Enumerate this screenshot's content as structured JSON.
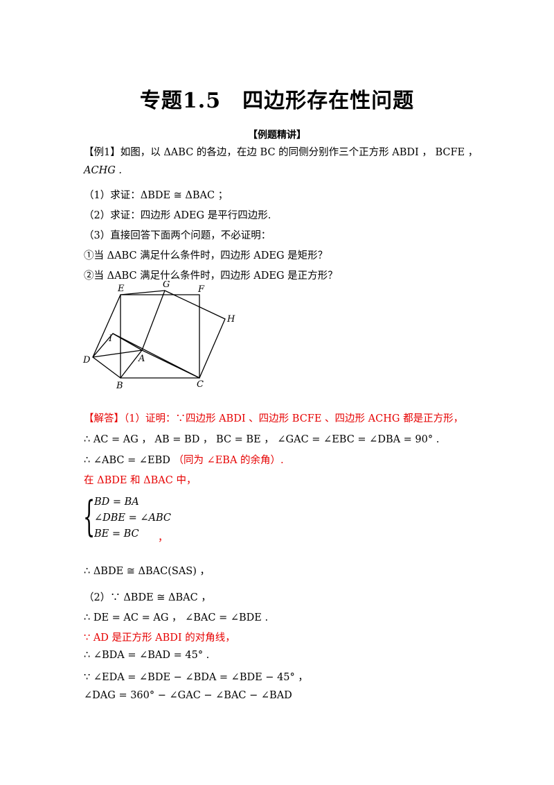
{
  "title": "专题1.5　四边形存在性问题",
  "section": "【例题精讲】",
  "problem": {
    "l1": "【例1】如图，以 ΔABC 的各边，在边 BC 的同侧分别作三个正方形 ABDI ， BCFE ，",
    "l2": "ACHG .",
    "q1": "（1）求证：ΔBDE ≅ ΔBAC ；",
    "q2": "（2）求证：四边形 ADEG 是平行四边形.",
    "q3": "（3）直接回答下面两个问题，不必证明：",
    "q3a": "①当 ΔABC 满足什么条件时，四边形 ADEG 是矩形？",
    "q3b": "②当 ΔABC 满足什么条件时，四边形 ADEG 是正方形？"
  },
  "figure_labels": {
    "E": "E",
    "G": "G",
    "F": "F",
    "H": "H",
    "I": "I",
    "D": "D",
    "A": "A",
    "B": "B",
    "C": "C"
  },
  "solution": {
    "s1_head": "【解答】（1）证明：∵四边形 ABDI 、四边形 BCFE 、四边形 ACHG 都是正方形，",
    "s2": "∴ AC = AG ， AB = BD ， BC = BE ， ∠GAC = ∠EBC = ∠DBA = 90° .",
    "s3_black": "∴ ∠ABC = ∠EBD",
    "s3_red": "（同为 ∠EBA 的余角）.",
    "s4": "在 ΔBDE 和 ΔBAC 中，",
    "sys1": "BD = BA",
    "sys2": "∠DBE = ∠ABC",
    "sys3": "BE = BC",
    "sys_end": "，",
    "s5": "∴ ΔBDE ≅ ΔBAC(SAS) ，",
    "s6": "（2）∵ ΔBDE ≅ ΔBAC ，",
    "s7": "∴ DE = AC = AG ， ∠BAC = ∠BDE .",
    "s8": "∵ AD 是正方形 ABDI 的对角线，",
    "s9": "∴ ∠BDA = ∠BAD = 45° .",
    "s10": "∵ ∠EDA = ∠BDE − ∠BDA = ∠BDE − 45° ，",
    "s11": "∠DAG = 360° − ∠GAC − ∠BAC − ∠BAD"
  }
}
